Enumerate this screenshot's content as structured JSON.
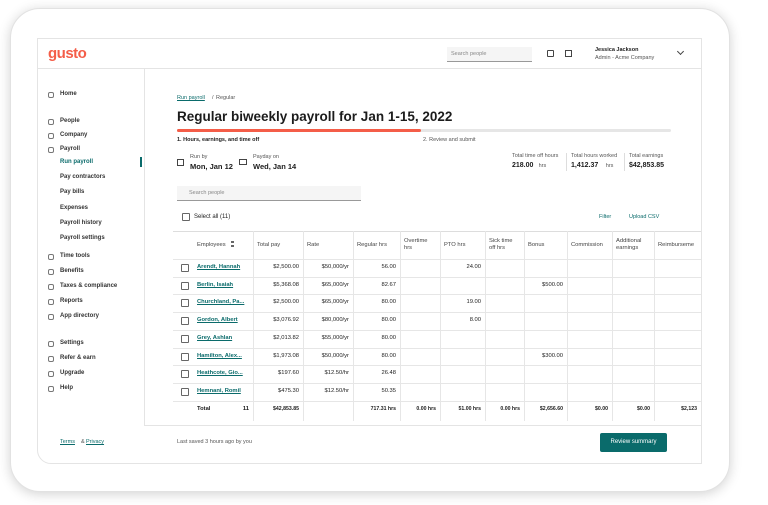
{
  "header": {
    "logo": "gusto",
    "search_placeholder": "Search people",
    "user_name": "Jessica Jackson",
    "user_org": "Admin - Acme Company"
  },
  "sidebar": {
    "items": [
      {
        "label": "Home"
      },
      {
        "label": "People"
      },
      {
        "label": "Company"
      },
      {
        "label": "Payroll",
        "children": [
          "Run payroll",
          "Pay contractors",
          "Pay bills",
          "Expenses",
          "Payroll history",
          "Payroll settings"
        ]
      },
      {
        "label": "Time tools"
      },
      {
        "label": "Benefits"
      },
      {
        "label": "Taxes & compliance"
      },
      {
        "label": "Reports"
      },
      {
        "label": "App directory"
      },
      {
        "label": "Settings"
      },
      {
        "label": "Refer & earn"
      },
      {
        "label": "Upgrade"
      },
      {
        "label": "Help"
      }
    ],
    "footer": {
      "terms": "Terms",
      "joiner": "&",
      "privacy": "Privacy"
    }
  },
  "main": {
    "breadcrumb": {
      "link": "Run payroll",
      "separator": "/",
      "current": "Regular"
    },
    "title": "Regular biweekly payroll for Jan 1-15, 2022",
    "steps": [
      "1. Hours, earnings, and time off",
      "2. Review and submit"
    ],
    "run_by": {
      "label": "Run by",
      "value": "Mon, Jan 12"
    },
    "payday": {
      "label": "Payday on",
      "value": "Wed, Jan 14"
    },
    "stats": [
      {
        "label": "Total time off hours",
        "value": "218.00",
        "unit": "hrs"
      },
      {
        "label": "Total hours worked",
        "value": "1,412.37",
        "unit": "hrs"
      },
      {
        "label": "Total earnings",
        "value": "$42,853.85",
        "unit": null
      }
    ],
    "search_placeholder": "Search people",
    "select_all": "Select all (11)",
    "filter": "Filter",
    "upload": "Upload CSV"
  },
  "table": {
    "columns": [
      "Employees",
      "Total pay",
      "Rate",
      "Regular hrs",
      "Overtime hrs",
      "PTO hrs",
      "Sick time off hrs",
      "Bonus",
      "Commission",
      "Additional earnings",
      "Reimburseme"
    ],
    "rows": [
      [
        "Arendt, Hannah",
        "$2,500.00",
        "$50,000/yr",
        "56.00",
        null,
        "24.00",
        null,
        null,
        null,
        null,
        null
      ],
      [
        "Berlin, Isaiah",
        "$5,368.08",
        "$65,000/yr",
        "82.67",
        null,
        null,
        null,
        "$500.00",
        null,
        null,
        null
      ],
      [
        "Churchland, Pa...",
        "$2,500.00",
        "$65,000/yr",
        "80.00",
        null,
        "19.00",
        null,
        null,
        null,
        null,
        null
      ],
      [
        "Gordon, Albert",
        "$3,076.92",
        "$80,000/yr",
        "80.00",
        null,
        "8.00",
        null,
        null,
        null,
        null,
        null
      ],
      [
        "Grey, Ashlan",
        "$2,013.82",
        "$55,000/yr",
        "80.00",
        null,
        null,
        null,
        null,
        null,
        null,
        null
      ],
      [
        "Hamilton, Alex...",
        "$1,973.08",
        "$50,000/yr",
        "80.00",
        null,
        null,
        null,
        "$300.00",
        null,
        null,
        null
      ],
      [
        "Heathcote, Gio...",
        "$197.60",
        "$12.50/hr",
        "26.48",
        null,
        null,
        null,
        null,
        null,
        null,
        null
      ],
      [
        "Hemnani, Romil",
        "$475.30",
        "$12.50/hr",
        "50.35",
        null,
        null,
        null,
        null,
        null,
        null,
        null
      ]
    ],
    "total": {
      "label": "Total",
      "count": "11",
      "cells": [
        null,
        "$42,853.85",
        null,
        "717.31 hrs",
        "0.00 hrs",
        "51.00 hrs",
        "0.00 hrs",
        "$2,656.60",
        "$0.00",
        "$0.00",
        "$2,123"
      ]
    }
  },
  "footer": {
    "saved": "Last saved 3 hours ago by you",
    "button": "Review summary"
  }
}
